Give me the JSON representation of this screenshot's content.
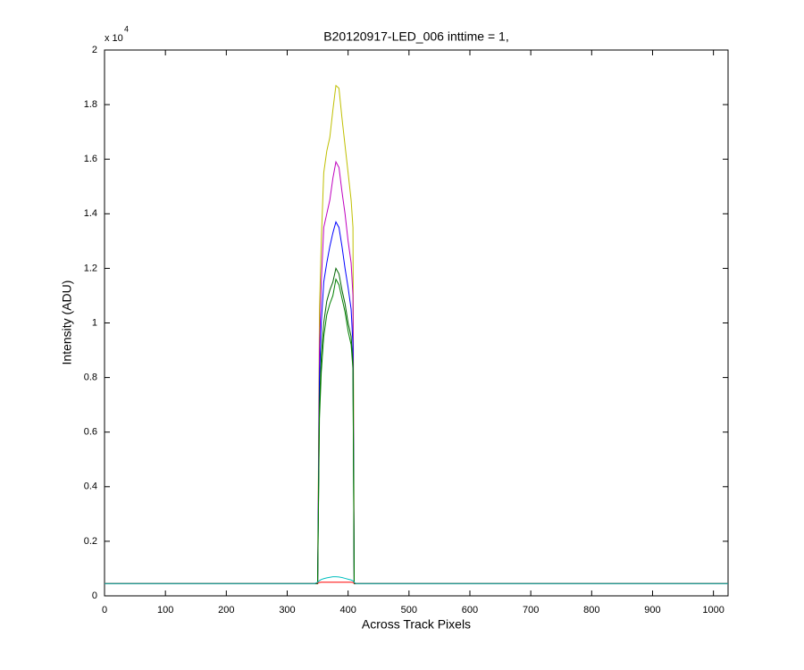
{
  "chart_data": {
    "type": "line",
    "title": "B20120917-LED_006 inttime = 1,",
    "x_label": "Across Track Pixels",
    "y_label": "Intensity (ADU)",
    "y_multiplier": {
      "base": "x 10",
      "exponent": "4"
    },
    "x": [
      0,
      345,
      350,
      353,
      356,
      360,
      365,
      370,
      375,
      380,
      385,
      390,
      395,
      400,
      405,
      408,
      410,
      413,
      420,
      1024
    ],
    "series": [
      {
        "color": "#bfbf00",
        "values": [
          450,
          450,
          450,
          10500,
          13000,
          15500,
          16300,
          16800,
          17800,
          18700,
          18600,
          17500,
          16500,
          15500,
          14500,
          13500,
          450,
          450,
          450,
          450
        ]
      },
      {
        "color": "#bf00bf",
        "values": [
          450,
          450,
          450,
          9000,
          11500,
          13500,
          14000,
          14500,
          15300,
          15900,
          15700,
          14800,
          14000,
          13000,
          12200,
          11000,
          450,
          450,
          450,
          450
        ]
      },
      {
        "color": "#0000ff",
        "values": [
          450,
          450,
          450,
          8000,
          10000,
          11500,
          12200,
          12800,
          13300,
          13700,
          13500,
          12800,
          12000,
          11300,
          10500,
          9200,
          450,
          450,
          450,
          450
        ]
      },
      {
        "color": "#006400",
        "values": [
          450,
          450,
          450,
          7000,
          8800,
          10000,
          10800,
          11200,
          11500,
          12000,
          11800,
          11200,
          10700,
          10000,
          9500,
          8500,
          450,
          450,
          450,
          450
        ]
      },
      {
        "color": "#008000",
        "values": [
          450,
          450,
          450,
          6500,
          8200,
          9500,
          10300,
          10700,
          11000,
          11600,
          11400,
          10900,
          10400,
          9700,
          9200,
          8300,
          450,
          450,
          450,
          450
        ]
      },
      {
        "color": "#ff0000",
        "values": [
          450,
          450,
          480,
          490,
          500,
          500,
          500,
          500,
          500,
          500,
          500,
          500,
          500,
          500,
          500,
          490,
          470,
          450,
          450,
          450
        ]
      },
      {
        "color": "#00bfbf",
        "values": [
          450,
          450,
          500,
          560,
          600,
          630,
          660,
          680,
          700,
          700,
          690,
          670,
          640,
          610,
          580,
          550,
          500,
          450,
          450,
          450
        ]
      }
    ],
    "xlim": [
      0,
      1024
    ],
    "ylim": [
      0,
      20000
    ],
    "xticks": [
      0,
      100,
      200,
      300,
      400,
      500,
      600,
      700,
      800,
      900,
      1000
    ],
    "yticks": [
      0,
      {
        "value": 2000,
        "label": "0.2"
      },
      {
        "value": 4000,
        "label": "0.4"
      },
      {
        "value": 6000,
        "label": "0.6"
      },
      {
        "value": 8000,
        "label": "0.8"
      },
      {
        "value": 10000,
        "label": "1"
      },
      {
        "value": 12000,
        "label": "1.2"
      },
      {
        "value": 14000,
        "label": "1.4"
      },
      {
        "value": 16000,
        "label": "1.6"
      },
      {
        "value": 18000,
        "label": "1.8"
      },
      {
        "value": 20000,
        "label": "2"
      }
    ],
    "grid": false
  }
}
